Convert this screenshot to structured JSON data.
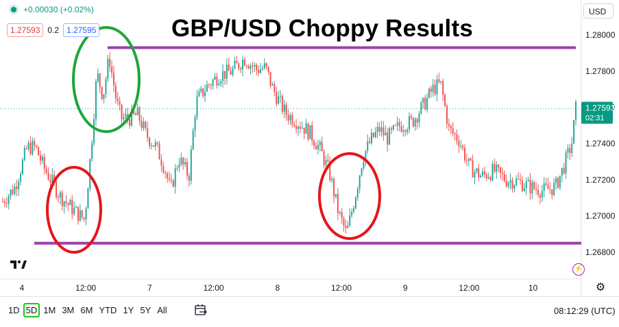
{
  "header": {
    "change": "+0.00030 (+0.02%)",
    "sell_price": "1.27593",
    "spread": "0.2",
    "buy_price": "1.27595",
    "currency": "USD"
  },
  "title": "GBP/USD Choppy Results",
  "current_price": {
    "price": "1.27593",
    "countdown": "02:31"
  },
  "time_labels": [
    "4",
    "12:00",
    "7",
    "12:00",
    "8",
    "12:00",
    "9",
    "12:00",
    "10"
  ],
  "bottom_bar": {
    "ranges": [
      "1D",
      "5D",
      "1M",
      "3M",
      "6M",
      "YTD",
      "1Y",
      "5Y",
      "All"
    ],
    "active_range": "5D",
    "clock": "08:12:29 (UTC)"
  },
  "colors": {
    "up": "#26a69a",
    "down": "#ef5350",
    "level_line": "#9c3fa8",
    "circle_red": "#e5151b",
    "circle_green": "#1ea63a",
    "price_label": "#089981"
  },
  "icons": [
    "tradingview-logo-icon",
    "settings-gear-icon",
    "calendar-icon",
    "events-icon"
  ],
  "chart_data": {
    "type": "candlestick",
    "yticks": [
      1.268,
      1.27,
      1.272,
      1.274,
      1.276,
      1.278,
      1.28
    ],
    "ylim": [
      1.267,
      1.2814
    ],
    "x_categories": [
      "4",
      "12:00",
      "7",
      "12:00",
      "8",
      "12:00",
      "9",
      "12:00",
      "10"
    ],
    "last_price": 1.27593,
    "resistance_level": 1.2793,
    "support_level": 1.2685,
    "path": [
      [
        0,
        1.2708
      ],
      [
        0.3,
        1.2716
      ],
      [
        0.6,
        1.2738
      ],
      [
        0.8,
        1.2738
      ],
      [
        1.0,
        1.2727
      ],
      [
        1.4,
        1.2711
      ],
      [
        1.7,
        1.2704
      ],
      [
        2.0,
        1.2698
      ],
      [
        2.15,
        1.2735
      ],
      [
        2.3,
        1.2779
      ],
      [
        2.45,
        1.2766
      ],
      [
        2.6,
        1.2788
      ],
      [
        2.78,
        1.2763
      ],
      [
        2.9,
        1.2754
      ],
      [
        3.1,
        1.2754
      ],
      [
        3.3,
        1.2756
      ],
      [
        3.5,
        1.2745
      ],
      [
        3.75,
        1.2738
      ],
      [
        3.95,
        1.2727
      ],
      [
        4.1,
        1.2714
      ],
      [
        4.3,
        1.2732
      ],
      [
        4.55,
        1.2722
      ],
      [
        4.72,
        1.2763
      ],
      [
        5.0,
        1.2772
      ],
      [
        5.3,
        1.2778
      ],
      [
        5.6,
        1.278
      ],
      [
        5.9,
        1.2787
      ],
      [
        6.2,
        1.2781
      ],
      [
        6.42,
        1.2782
      ],
      [
        6.6,
        1.277
      ],
      [
        6.9,
        1.2757
      ],
      [
        7.2,
        1.2752
      ],
      [
        7.5,
        1.2746
      ],
      [
        7.75,
        1.2737
      ],
      [
        7.98,
        1.2724
      ],
      [
        8.2,
        1.2702
      ],
      [
        8.4,
        1.269
      ],
      [
        8.6,
        1.271
      ],
      [
        8.8,
        1.2733
      ],
      [
        9.0,
        1.2742
      ],
      [
        9.2,
        1.2748
      ],
      [
        9.4,
        1.2743
      ],
      [
        9.7,
        1.275
      ],
      [
        10.0,
        1.2752
      ],
      [
        10.3,
        1.2762
      ],
      [
        10.5,
        1.277
      ],
      [
        10.7,
        1.2773
      ],
      [
        10.9,
        1.2748
      ],
      [
        11.15,
        1.2742
      ],
      [
        11.4,
        1.2727
      ],
      [
        11.7,
        1.2722
      ],
      [
        12.0,
        1.2725
      ],
      [
        12.3,
        1.272
      ],
      [
        12.6,
        1.2719
      ],
      [
        12.9,
        1.2716
      ],
      [
        13.2,
        1.2714
      ],
      [
        13.5,
        1.2716
      ],
      [
        13.7,
        1.2727
      ],
      [
        13.9,
        1.274
      ],
      [
        14.0,
        1.27593
      ]
    ]
  }
}
